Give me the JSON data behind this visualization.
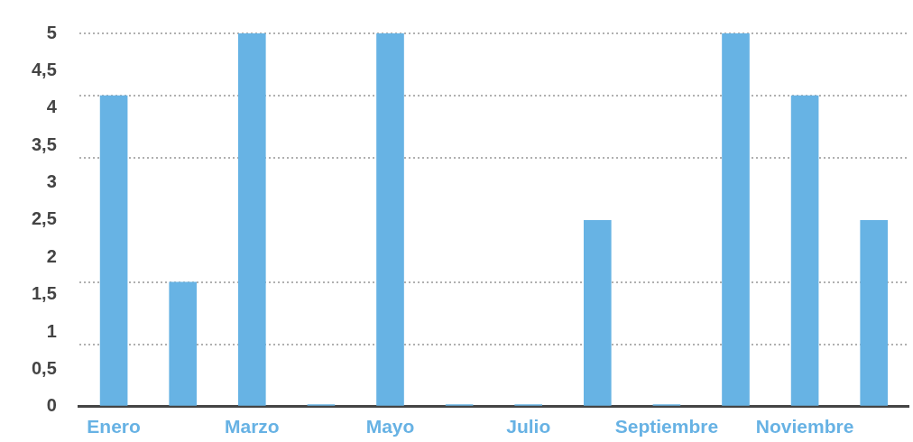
{
  "chart_data": {
    "type": "bar",
    "categories": [
      "Enero",
      null,
      "Marzo",
      null,
      "Mayo",
      null,
      "Julio",
      null,
      "Septiembre",
      null,
      "Noviembre",
      null
    ],
    "values": [
      4.17,
      1.67,
      5,
      0.03,
      5,
      0.03,
      0.03,
      2.5,
      0.03,
      5,
      4.17,
      2.5
    ],
    "color": "#67b3e4",
    "ylim": [
      0,
      5
    ],
    "yticks": [
      0,
      {
        "value": 0.5,
        "label": "0,5"
      },
      1,
      {
        "value": 1.5,
        "label": "1,5"
      },
      2,
      {
        "value": 2.5,
        "label": "2,5"
      },
      3,
      {
        "value": 3.5,
        "label": "3,5"
      },
      4,
      {
        "value": 4.5,
        "label": "4,5"
      },
      5,
      {
        "value": 0.83,
        "label": null
      },
      {
        "value": 1.67,
        "label": null
      },
      {
        "value": 3.33,
        "label": null
      },
      {
        "value": 4.17,
        "label": null
      }
    ],
    "grid": "y",
    "legend": false
  }
}
